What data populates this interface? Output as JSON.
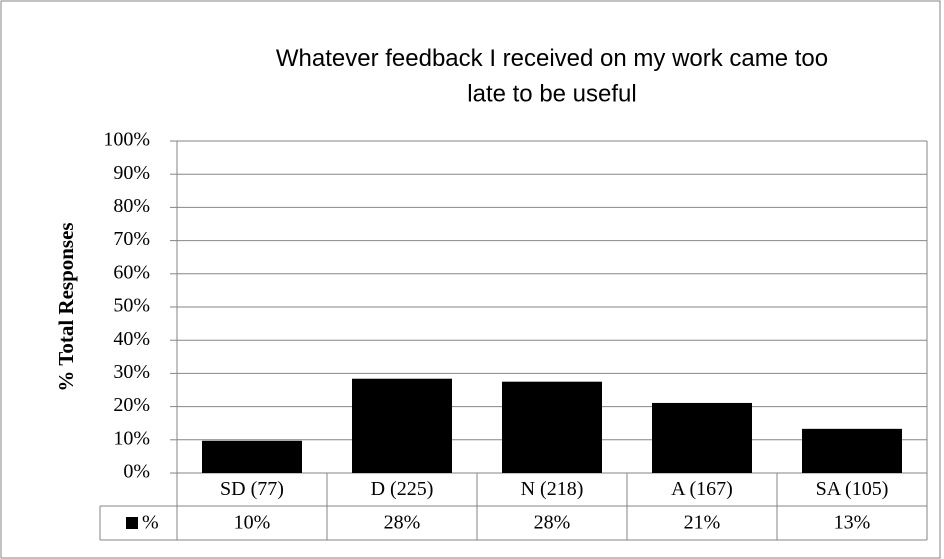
{
  "chart_data": {
    "type": "bar",
    "title": "Whatever feedback I received on my work came too late to be useful",
    "y_label": "% Total Responses",
    "categories": [
      "SD (77)",
      "D (225)",
      "N (218)",
      "A (167)",
      "SA (105)"
    ],
    "series": [
      {
        "name": "%",
        "color": "#000000",
        "values": [
          9.7,
          28.4,
          27.5,
          21.1,
          13.3
        ],
        "value_labels": [
          "10%",
          "28%",
          "28%",
          "21%",
          "13%"
        ]
      }
    ],
    "ylim": [
      0,
      100
    ],
    "yticks": [
      {
        "value": 0,
        "label": "0%"
      },
      {
        "value": 10,
        "label": "10%"
      },
      {
        "value": 20,
        "label": "20%"
      },
      {
        "value": 30,
        "label": "30%"
      },
      {
        "value": 40,
        "label": "40%"
      },
      {
        "value": 50,
        "label": "50%"
      },
      {
        "value": 60,
        "label": "60%"
      },
      {
        "value": 70,
        "label": "70%"
      },
      {
        "value": 80,
        "label": "80%"
      },
      {
        "value": 90,
        "label": "90%"
      },
      {
        "value": 100,
        "label": "100%"
      }
    ],
    "grid": true
  }
}
